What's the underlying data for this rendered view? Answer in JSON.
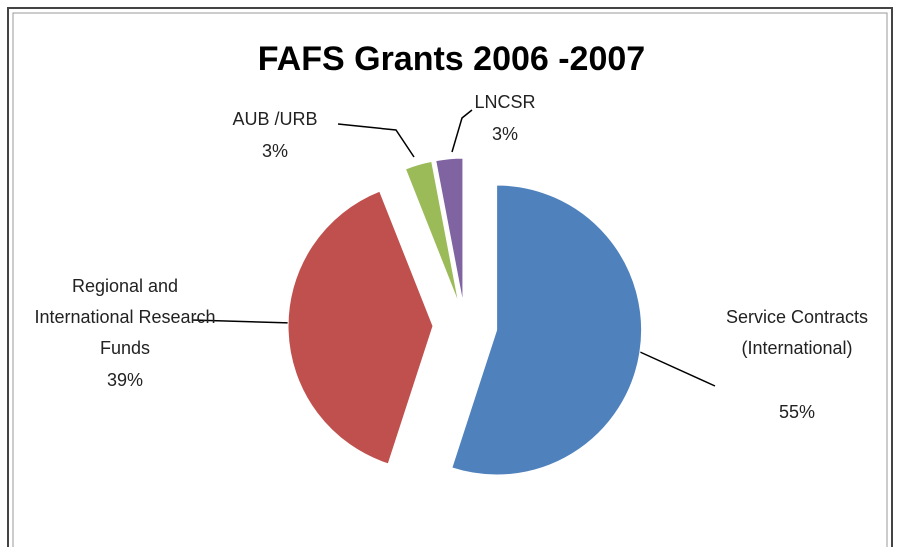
{
  "chart_data": {
    "type": "pie",
    "title": "FAFS Grants 2006 -2007",
    "categories": [
      "Service Contracts (International)",
      "Regional and International Research Funds",
      "AUB /URB",
      "LNCSR"
    ],
    "values": [
      55,
      39,
      3,
      3
    ],
    "value_labels": [
      "55%",
      "39%",
      "3%",
      "3%"
    ],
    "colors": [
      "#4f81bd",
      "#c0504d",
      "#9bbb59",
      "#8064a2"
    ]
  }
}
